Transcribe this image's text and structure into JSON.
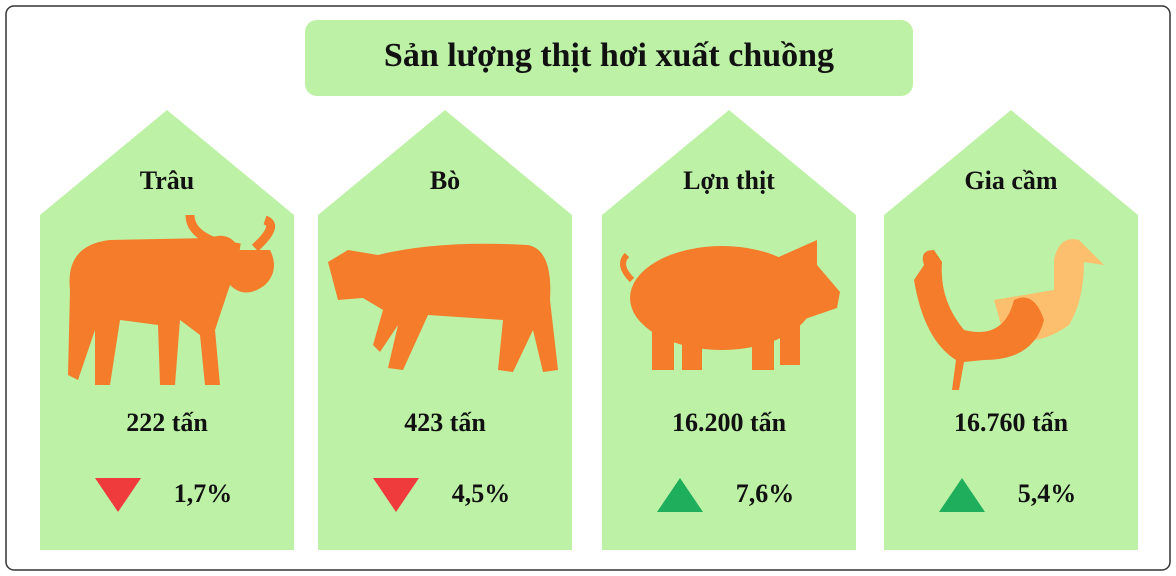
{
  "title": "Sản lượng thịt hơi xuất chuồng",
  "cards": [
    {
      "name": "Trâu",
      "amount": "222 tấn",
      "change": "1,7%",
      "direction": "down"
    },
    {
      "name": "Bò",
      "amount": "423 tấn",
      "change": "4,5%",
      "direction": "down"
    },
    {
      "name": "Lợn thịt",
      "amount": "16.200 tấn",
      "change": "7,6%",
      "direction": "up"
    },
    {
      "name": "Gia cầm",
      "amount": "16.760 tấn",
      "change": "5,4%",
      "direction": "up"
    }
  ]
}
